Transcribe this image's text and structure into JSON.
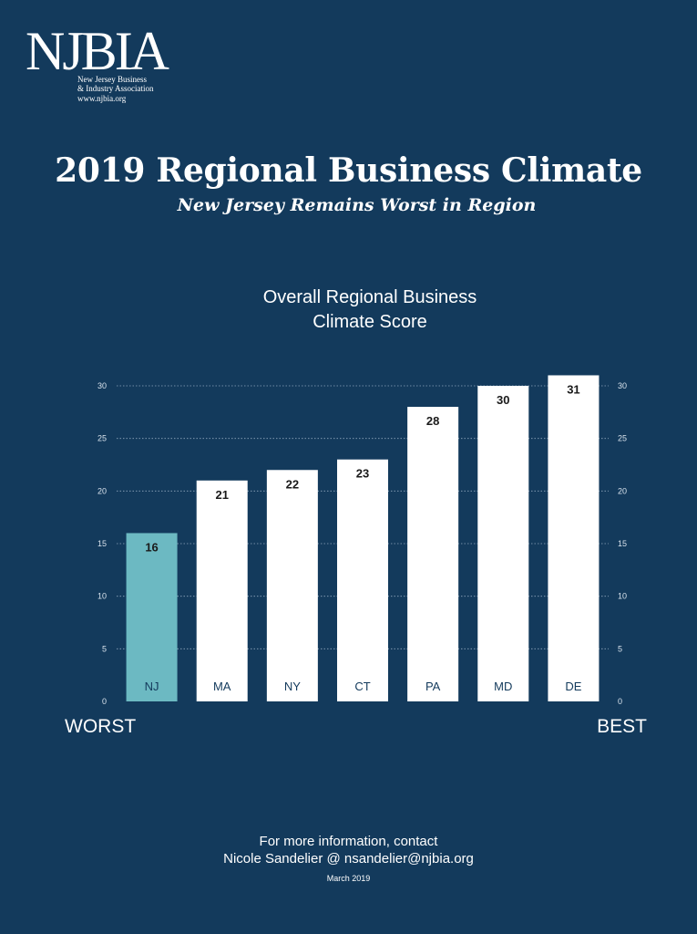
{
  "logo": {
    "wordmark": "NJBIA",
    "line1": "New Jersey Business",
    "line2": "& Industry Association",
    "line3": "www.njbia.org"
  },
  "header": {
    "title": "2019 Regional Business Climate",
    "subtitle": "New Jersey Remains Worst in Region"
  },
  "colors": {
    "background": "#133a5c",
    "bar_default": "#ffffff",
    "bar_highlight": "#6cb9c2",
    "label_text": "#133a5c",
    "grid": "#8fa6bb"
  },
  "chart_data": {
    "type": "bar",
    "title": "Overall Regional Business Climate Score",
    "categories": [
      "NJ",
      "MA",
      "NY",
      "CT",
      "PA",
      "MD",
      "DE"
    ],
    "values": [
      16,
      21,
      22,
      23,
      28,
      30,
      31
    ],
    "highlight": [
      "NJ"
    ],
    "ylim": [
      0,
      30
    ],
    "yticks": [
      0,
      5,
      10,
      15,
      20,
      25,
      30
    ],
    "grid": true,
    "gridline_style": "dotted",
    "y_axis_labels_both_sides": true,
    "x_extreme_labels": {
      "left": "WORST",
      "right": "BEST"
    }
  },
  "footer": {
    "line1": "For more information, contact",
    "line2": "Nicole Sandelier @ nsandelier@njbia.org",
    "date": "March 2019"
  }
}
